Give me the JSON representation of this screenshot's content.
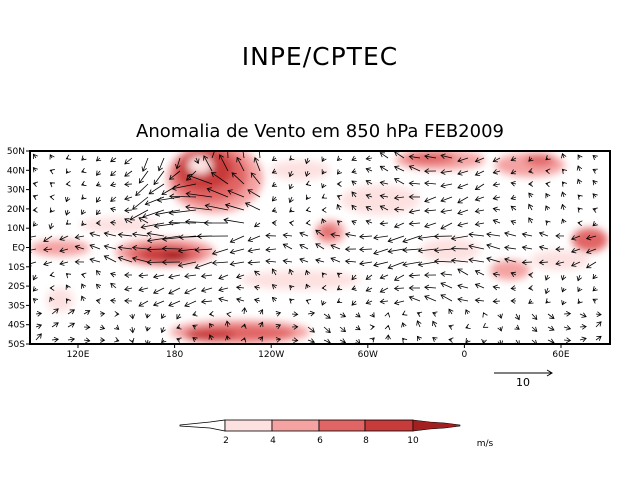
{
  "header": {
    "title": "INPE/CPTEC",
    "subtitle": "Anomalia de Vento em 850 hPa FEB2009"
  },
  "map": {
    "lat_labels": [
      "50N",
      "40N",
      "30N",
      "20N",
      "10N",
      "EQ",
      "10S",
      "20S",
      "30S",
      "40S",
      "50S"
    ],
    "lon_labels": [
      "120E",
      "180",
      "120W",
      "60W",
      "0",
      "60E"
    ],
    "lat_range": [
      -50,
      50
    ],
    "lon_range": [
      90,
      450
    ]
  },
  "reference_vector": {
    "label": "10"
  },
  "colorbar": {
    "levels": [
      "2",
      "4",
      "6",
      "8",
      "10"
    ],
    "units": "m/s",
    "colors": [
      "#ffffff",
      "#fde1e1",
      "#f4a2a2",
      "#e16565",
      "#c83b3b",
      "#a41f1f"
    ]
  }
}
